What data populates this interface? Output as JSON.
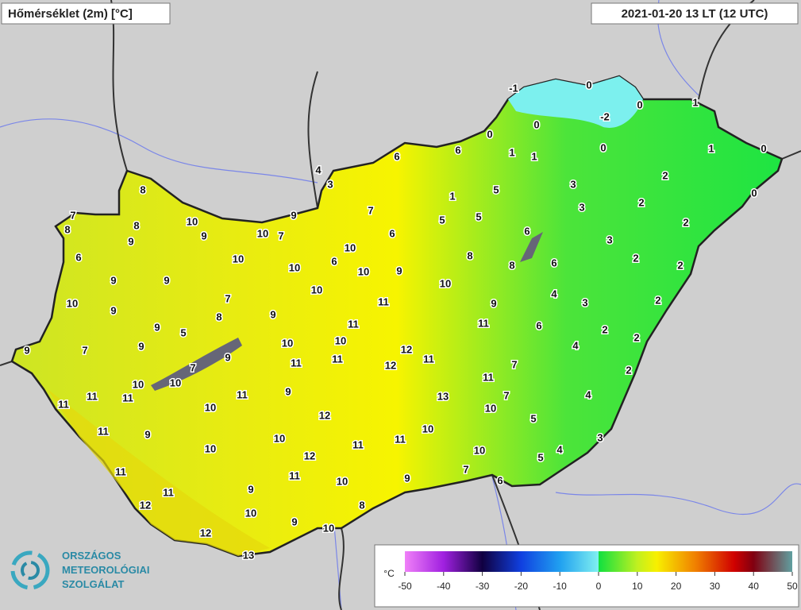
{
  "header": {
    "title": "Hőmérséklet (2m) [°C]",
    "time": "2021-01-20 13 LT (12 UTC)"
  },
  "stations": [
    -1,
    0,
    -2,
    0,
    1,
    0,
    0,
    1,
    1,
    0,
    1,
    0,
    6,
    6,
    4,
    3,
    3,
    2,
    0,
    5,
    1,
    2,
    3,
    7,
    5,
    5,
    2,
    8,
    7,
    8,
    8,
    10,
    9,
    10,
    7,
    9,
    9,
    6,
    6,
    3,
    10,
    6,
    10,
    10,
    6,
    10,
    9,
    8,
    8,
    6,
    2,
    2,
    9,
    9,
    10,
    10,
    10,
    9,
    7,
    11,
    9,
    4,
    3,
    2,
    9,
    8,
    11,
    11,
    6,
    2,
    9,
    5,
    9,
    9,
    7,
    10,
    10,
    12,
    11,
    4,
    2,
    7,
    9,
    11,
    11,
    12,
    7,
    2,
    10,
    10,
    11,
    11,
    11,
    11,
    9,
    11,
    13,
    7,
    4,
    10,
    12,
    10,
    5,
    11,
    9,
    10,
    10,
    11,
    11,
    3,
    10,
    12,
    10,
    5,
    4,
    11,
    7,
    11,
    10,
    9,
    6,
    11,
    9,
    12,
    10,
    8,
    9,
    10,
    12,
    13
  ],
  "colorbar": {
    "unit": "°C",
    "ticks": [
      -50,
      -40,
      -30,
      -20,
      -10,
      0,
      10,
      20,
      30,
      40,
      50
    ]
  },
  "logo": {
    "lines": [
      "ORSZÁGOS",
      "METEOROLÓGIAI",
      "SZOLGÁLAT"
    ]
  }
}
